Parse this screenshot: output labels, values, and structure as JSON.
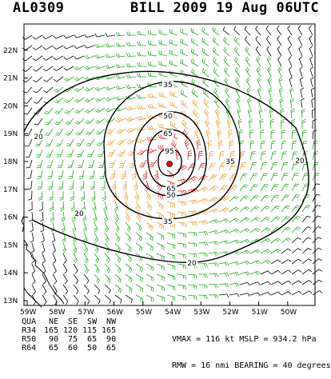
{
  "title": {
    "storm_id": "AL0309",
    "storm_info": "BILL 2009 19 Aug 06UTC"
  },
  "map": {
    "lat_labels": [
      "13N",
      "14N",
      "15N",
      "16N",
      "17N",
      "18N",
      "19N",
      "20N",
      "21N",
      "22N"
    ],
    "lon_labels": [
      "59W",
      "58W",
      "57W",
      "56W",
      "55W",
      "54W",
      "53W",
      "52W",
      "51W",
      "50W"
    ],
    "contour_labels": [
      "35",
      "35",
      "65",
      "50",
      "95",
      "65",
      "50",
      "35",
      "20",
      "20",
      "20",
      "20"
    ],
    "center_marker": "storm-center",
    "colors": {
      "barb_low": "#000000",
      "barb_34kt": "#22aa22",
      "barb_50kt": "#e8a030",
      "barb_64kt": "#e02020",
      "center": "#ff0000",
      "contour": "#000000"
    }
  },
  "radii_table": {
    "header": [
      "QUA",
      "NE",
      "SE",
      "SW",
      "NW"
    ],
    "rows": [
      [
        "R34",
        "165",
        "120",
        "115",
        "165"
      ],
      [
        "R50",
        "90",
        "75",
        "65",
        "90"
      ],
      [
        "R64",
        "65",
        "60",
        "50",
        "65"
      ]
    ]
  },
  "stats": {
    "line1": "VMAX = 116 kt MSLP = 934.2 hPa",
    "line2": "RMW = 16 nmi BEARING = 40 degrees"
  }
}
